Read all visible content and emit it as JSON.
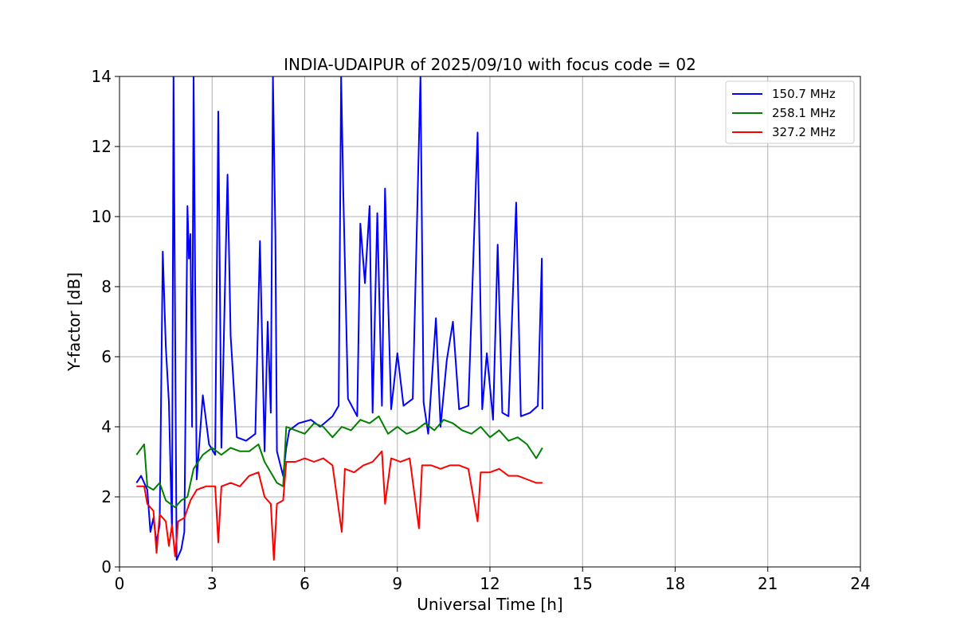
{
  "chart_data": {
    "type": "line",
    "title": "INDIA-UDAIPUR of 2025/09/10 with focus code = 02",
    "xlabel": "Universal Time [h]",
    "ylabel": "Y-factor [dB]",
    "xlim": [
      0,
      24
    ],
    "ylim": [
      0,
      14
    ],
    "xticks": [
      0,
      3,
      6,
      9,
      12,
      15,
      18,
      21,
      24
    ],
    "yticks": [
      0,
      2,
      4,
      6,
      8,
      10,
      12,
      14
    ],
    "grid": true,
    "legend_position": "top-right",
    "series": [
      {
        "name": "150.7 MHz",
        "color": "#0000ff",
        "points": [
          [
            0.55,
            2.4
          ],
          [
            0.7,
            2.6
          ],
          [
            0.9,
            2.2
          ],
          [
            1.0,
            1.0
          ],
          [
            1.1,
            1.4
          ],
          [
            1.2,
            0.7
          ],
          [
            1.3,
            1.2
          ],
          [
            1.4,
            9.0
          ],
          [
            1.5,
            6.3
          ],
          [
            1.6,
            4.7
          ],
          [
            1.7,
            1.0
          ],
          [
            1.75,
            14.0
          ],
          [
            1.85,
            0.2
          ],
          [
            2.0,
            0.5
          ],
          [
            2.1,
            1.0
          ],
          [
            2.2,
            10.3
          ],
          [
            2.25,
            8.8
          ],
          [
            2.3,
            9.5
          ],
          [
            2.35,
            4.0
          ],
          [
            2.4,
            14.0
          ],
          [
            2.5,
            2.5
          ],
          [
            2.7,
            4.9
          ],
          [
            2.9,
            3.5
          ],
          [
            3.1,
            3.2
          ],
          [
            3.2,
            13.0
          ],
          [
            3.3,
            3.4
          ],
          [
            3.45,
            9.3
          ],
          [
            3.5,
            11.2
          ],
          [
            3.6,
            6.6
          ],
          [
            3.8,
            3.7
          ],
          [
            4.1,
            3.6
          ],
          [
            4.4,
            3.8
          ],
          [
            4.55,
            9.3
          ],
          [
            4.7,
            3.3
          ],
          [
            4.8,
            7.0
          ],
          [
            4.9,
            4.4
          ],
          [
            4.97,
            14.0
          ],
          [
            5.05,
            9.4
          ],
          [
            5.1,
            3.3
          ],
          [
            5.3,
            2.6
          ],
          [
            5.4,
            3.4
          ],
          [
            5.5,
            3.9
          ],
          [
            5.8,
            4.1
          ],
          [
            6.2,
            4.2
          ],
          [
            6.5,
            4.0
          ],
          [
            6.9,
            4.3
          ],
          [
            7.1,
            4.6
          ],
          [
            7.18,
            14.0
          ],
          [
            7.25,
            10.7
          ],
          [
            7.4,
            4.8
          ],
          [
            7.7,
            4.3
          ],
          [
            7.8,
            9.8
          ],
          [
            7.95,
            8.1
          ],
          [
            8.1,
            10.3
          ],
          [
            8.2,
            4.4
          ],
          [
            8.35,
            10.1
          ],
          [
            8.5,
            4.6
          ],
          [
            8.6,
            10.8
          ],
          [
            8.8,
            4.5
          ],
          [
            9.0,
            6.1
          ],
          [
            9.2,
            4.6
          ],
          [
            9.5,
            4.8
          ],
          [
            9.75,
            14.0
          ],
          [
            9.85,
            4.7
          ],
          [
            10.0,
            3.8
          ],
          [
            10.25,
            7.1
          ],
          [
            10.4,
            4.0
          ],
          [
            10.6,
            5.9
          ],
          [
            10.8,
            7.0
          ],
          [
            11.0,
            4.5
          ],
          [
            11.3,
            4.6
          ],
          [
            11.6,
            12.4
          ],
          [
            11.75,
            4.5
          ],
          [
            11.9,
            6.1
          ],
          [
            12.1,
            4.2
          ],
          [
            12.25,
            9.2
          ],
          [
            12.4,
            4.4
          ],
          [
            12.6,
            4.3
          ],
          [
            12.85,
            10.4
          ],
          [
            13.0,
            4.3
          ],
          [
            13.3,
            4.4
          ],
          [
            13.55,
            4.6
          ],
          [
            13.68,
            8.8
          ],
          [
            13.7,
            4.5
          ]
        ]
      },
      {
        "name": "258.1 MHz",
        "color": "#008000",
        "points": [
          [
            0.55,
            3.2
          ],
          [
            0.8,
            3.5
          ],
          [
            0.9,
            2.3
          ],
          [
            1.1,
            2.2
          ],
          [
            1.3,
            2.4
          ],
          [
            1.5,
            1.9
          ],
          [
            1.8,
            1.7
          ],
          [
            2.0,
            1.9
          ],
          [
            2.2,
            2.0
          ],
          [
            2.4,
            2.8
          ],
          [
            2.7,
            3.2
          ],
          [
            3.0,
            3.4
          ],
          [
            3.3,
            3.2
          ],
          [
            3.6,
            3.4
          ],
          [
            3.9,
            3.3
          ],
          [
            4.2,
            3.3
          ],
          [
            4.5,
            3.5
          ],
          [
            4.7,
            3.0
          ],
          [
            4.9,
            2.7
          ],
          [
            5.1,
            2.4
          ],
          [
            5.3,
            2.3
          ],
          [
            5.4,
            4.0
          ],
          [
            5.7,
            3.9
          ],
          [
            6.0,
            3.8
          ],
          [
            6.3,
            4.1
          ],
          [
            6.6,
            4.0
          ],
          [
            6.9,
            3.7
          ],
          [
            7.2,
            4.0
          ],
          [
            7.5,
            3.9
          ],
          [
            7.8,
            4.2
          ],
          [
            8.1,
            4.1
          ],
          [
            8.4,
            4.3
          ],
          [
            8.7,
            3.8
          ],
          [
            9.0,
            4.0
          ],
          [
            9.3,
            3.8
          ],
          [
            9.6,
            3.9
          ],
          [
            9.9,
            4.1
          ],
          [
            10.2,
            3.9
          ],
          [
            10.5,
            4.2
          ],
          [
            10.8,
            4.1
          ],
          [
            11.1,
            3.9
          ],
          [
            11.4,
            3.8
          ],
          [
            11.7,
            4.0
          ],
          [
            12.0,
            3.7
          ],
          [
            12.3,
            3.9
          ],
          [
            12.6,
            3.6
          ],
          [
            12.9,
            3.7
          ],
          [
            13.2,
            3.5
          ],
          [
            13.5,
            3.1
          ],
          [
            13.7,
            3.4
          ]
        ]
      },
      {
        "name": "327.2 MHz",
        "color": "#ff0000",
        "points": [
          [
            0.55,
            2.3
          ],
          [
            0.8,
            2.3
          ],
          [
            0.9,
            1.8
          ],
          [
            1.1,
            1.6
          ],
          [
            1.2,
            0.4
          ],
          [
            1.3,
            1.5
          ],
          [
            1.5,
            1.3
          ],
          [
            1.6,
            0.6
          ],
          [
            1.7,
            1.2
          ],
          [
            1.8,
            0.3
          ],
          [
            1.9,
            1.3
          ],
          [
            2.1,
            1.4
          ],
          [
            2.3,
            1.9
          ],
          [
            2.5,
            2.2
          ],
          [
            2.8,
            2.3
          ],
          [
            3.1,
            2.3
          ],
          [
            3.2,
            0.7
          ],
          [
            3.3,
            2.3
          ],
          [
            3.6,
            2.4
          ],
          [
            3.9,
            2.3
          ],
          [
            4.2,
            2.6
          ],
          [
            4.5,
            2.7
          ],
          [
            4.7,
            2.0
          ],
          [
            4.9,
            1.8
          ],
          [
            5.0,
            0.2
          ],
          [
            5.1,
            1.8
          ],
          [
            5.3,
            1.9
          ],
          [
            5.4,
            3.0
          ],
          [
            5.7,
            3.0
          ],
          [
            6.0,
            3.1
          ],
          [
            6.3,
            3.0
          ],
          [
            6.6,
            3.1
          ],
          [
            6.9,
            2.9
          ],
          [
            7.2,
            1.0
          ],
          [
            7.3,
            2.8
          ],
          [
            7.6,
            2.7
          ],
          [
            7.9,
            2.9
          ],
          [
            8.2,
            3.0
          ],
          [
            8.5,
            3.3
          ],
          [
            8.6,
            1.8
          ],
          [
            8.8,
            3.1
          ],
          [
            9.1,
            3.0
          ],
          [
            9.4,
            3.1
          ],
          [
            9.7,
            1.1
          ],
          [
            9.8,
            2.9
          ],
          [
            10.1,
            2.9
          ],
          [
            10.4,
            2.8
          ],
          [
            10.7,
            2.9
          ],
          [
            11.0,
            2.9
          ],
          [
            11.3,
            2.8
          ],
          [
            11.6,
            1.3
          ],
          [
            11.7,
            2.7
          ],
          [
            12.0,
            2.7
          ],
          [
            12.3,
            2.8
          ],
          [
            12.6,
            2.6
          ],
          [
            12.9,
            2.6
          ],
          [
            13.2,
            2.5
          ],
          [
            13.5,
            2.4
          ],
          [
            13.7,
            2.4
          ]
        ]
      }
    ]
  }
}
